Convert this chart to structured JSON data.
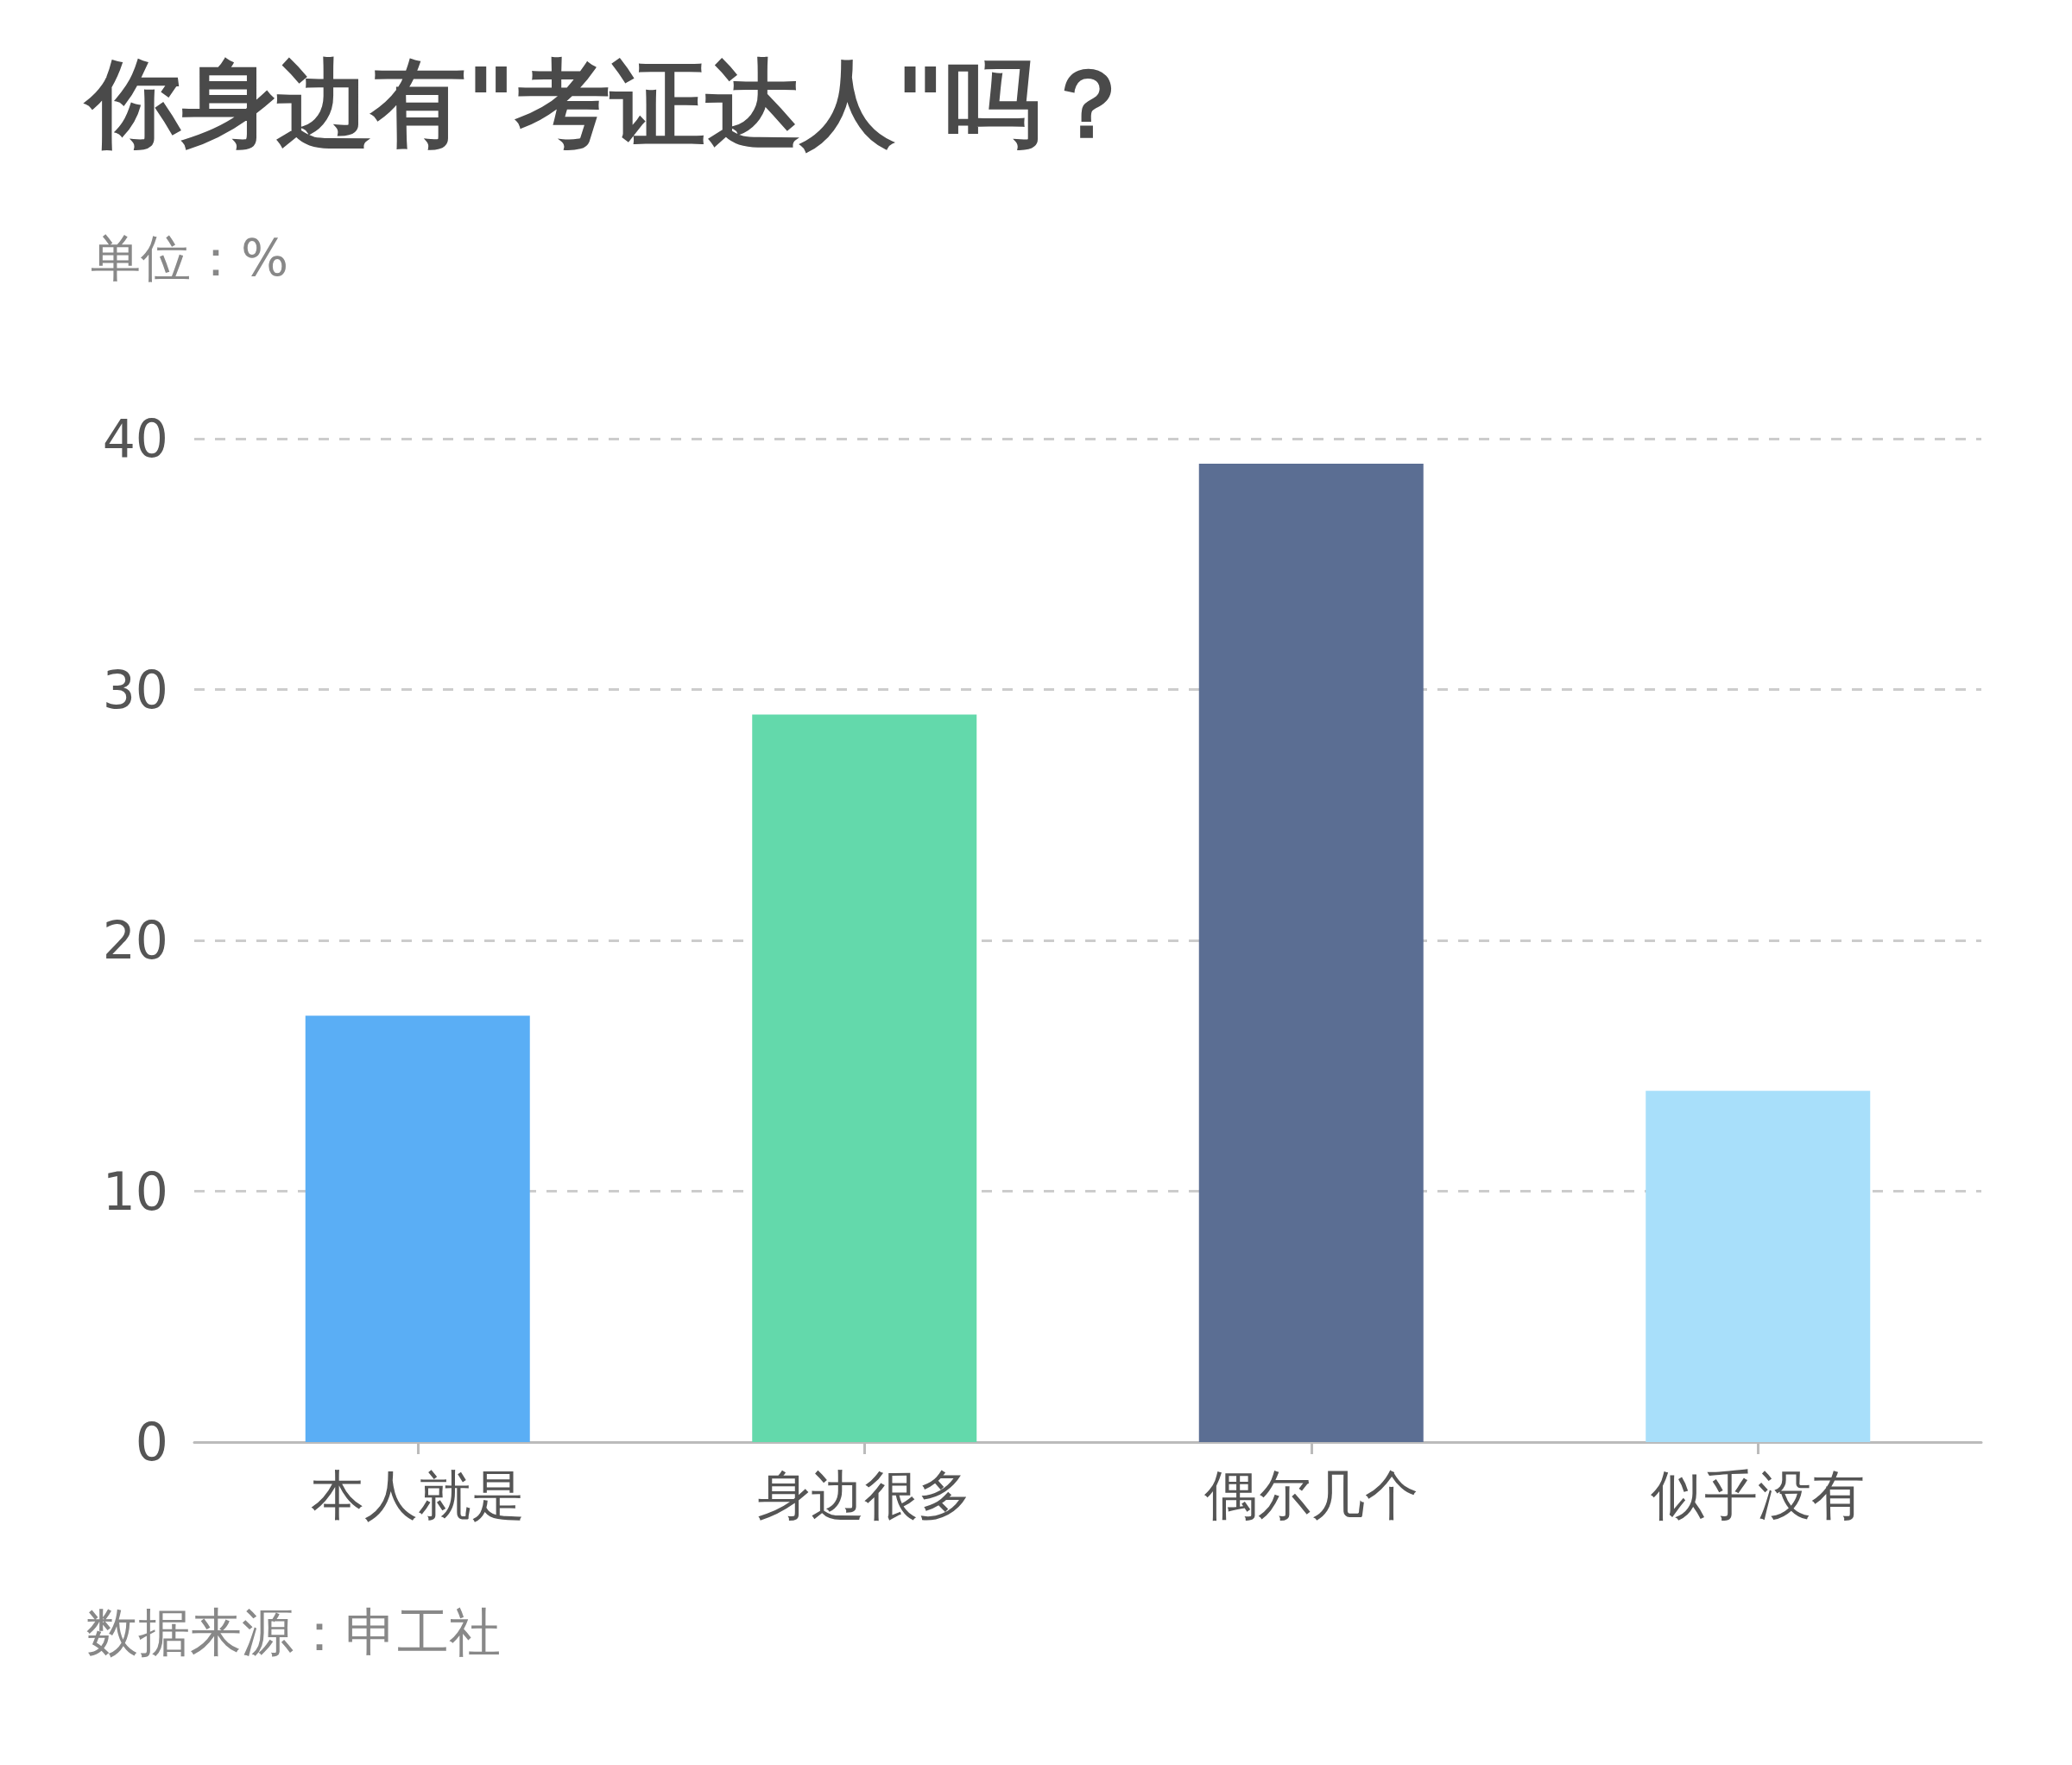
{
  "chart_data": {
    "type": "bar",
    "title": "你身边有\"考证达人\"吗？",
    "subtitle": "单位：%",
    "categories": [
      "本人就是",
      "身边很多",
      "偶尔几个",
      "似乎没有"
    ],
    "values": [
      17,
      29,
      39,
      14
    ],
    "colors": [
      "#5aaef5",
      "#63d9ab",
      "#5b6e93",
      "#a8dffa"
    ],
    "ylim": [
      0,
      40
    ],
    "yticks": [
      0,
      10,
      20,
      30,
      40
    ],
    "grid": "y",
    "annotations": [
      "数据来源：申工社"
    ]
  }
}
